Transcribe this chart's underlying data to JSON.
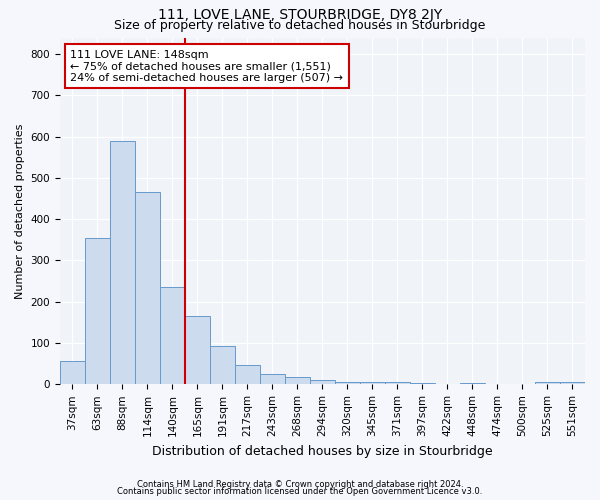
{
  "title": "111, LOVE LANE, STOURBRIDGE, DY8 2JY",
  "subtitle": "Size of property relative to detached houses in Stourbridge",
  "xlabel": "Distribution of detached houses by size in Stourbridge",
  "ylabel": "Number of detached properties",
  "footer_line1": "Contains HM Land Registry data © Crown copyright and database right 2024.",
  "footer_line2": "Contains public sector information licensed under the Open Government Licence v3.0.",
  "annotation_line1": "111 LOVE LANE: 148sqm",
  "annotation_line2": "← 75% of detached houses are smaller (1,551)",
  "annotation_line3": "24% of semi-detached houses are larger (507) →",
  "bar_color": "#ccdcee",
  "bar_edge_color": "#6699cc",
  "vline_color": "#cc0000",
  "vline_x": 4.5,
  "annotation_box_facecolor": "#ffffff",
  "annotation_box_edgecolor": "#cc0000",
  "categories": [
    "37sqm",
    "63sqm",
    "88sqm",
    "114sqm",
    "140sqm",
    "165sqm",
    "191sqm",
    "217sqm",
    "243sqm",
    "268sqm",
    "294sqm",
    "320sqm",
    "345sqm",
    "371sqm",
    "397sqm",
    "422sqm",
    "448sqm",
    "474sqm",
    "500sqm",
    "525sqm",
    "551sqm"
  ],
  "values": [
    57,
    355,
    590,
    465,
    235,
    165,
    93,
    48,
    25,
    18,
    10,
    5,
    5,
    5,
    3,
    0,
    3,
    0,
    0,
    5,
    5
  ],
  "ylim": [
    0,
    840
  ],
  "yticks": [
    0,
    100,
    200,
    300,
    400,
    500,
    600,
    700,
    800
  ],
  "bg_color": "#f5f7fc",
  "plot_bg_color": "#f0f4f9",
  "title_fontsize": 10,
  "subtitle_fontsize": 9,
  "ylabel_fontsize": 8,
  "xlabel_fontsize": 9,
  "tick_fontsize": 7.5,
  "annotation_fontsize": 8,
  "footer_fontsize": 6
}
